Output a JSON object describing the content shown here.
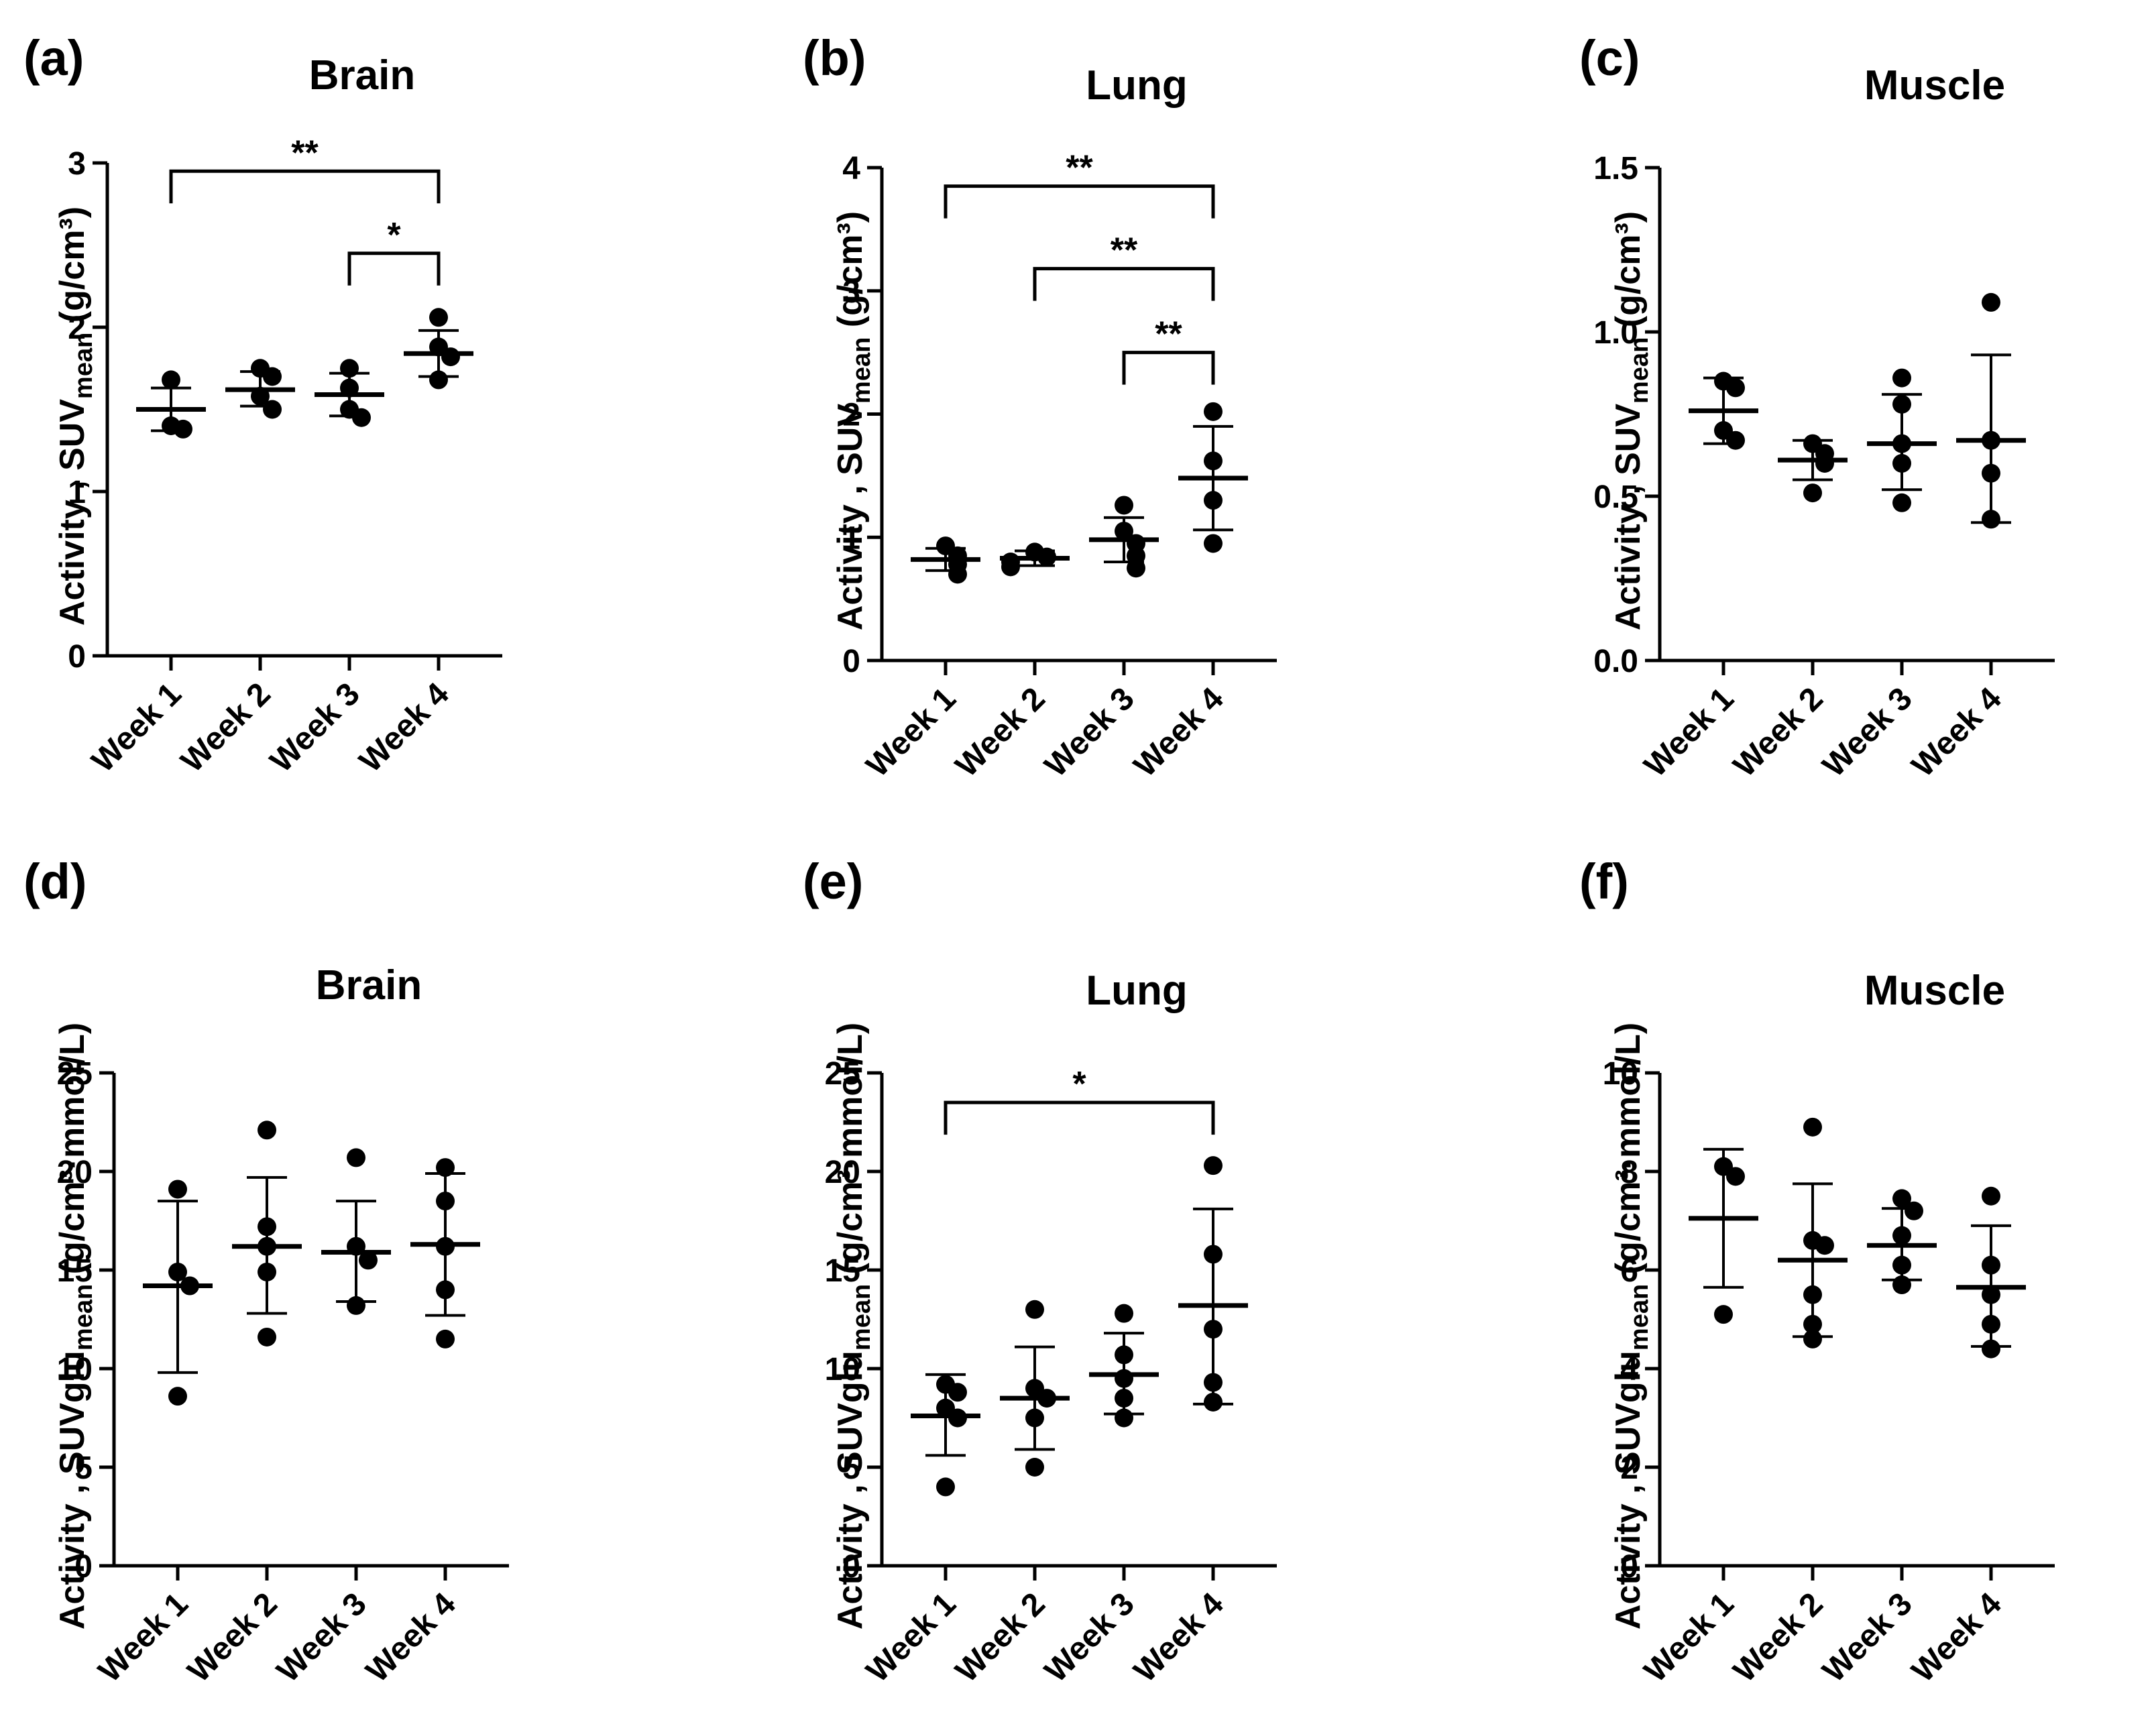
{
  "chart_data": [
    {
      "panel": "(a)",
      "title": "Brain",
      "type": "scatter",
      "ylabel_main": "Activity , SUV",
      "ylabel_sub": "mean",
      "ylabel_unit": " (g/cm³)",
      "ylim": [
        0,
        3
      ],
      "yticks": [
        "0",
        "1",
        "2",
        "3"
      ],
      "categories": [
        "Week 1",
        "Week 2",
        "Week 3",
        "Week 4"
      ],
      "groups": [
        {
          "points": [
            1.68,
            1.4,
            1.38
          ],
          "mean": 1.5,
          "sd_low": 1.37,
          "sd_high": 1.63
        },
        {
          "points": [
            1.75,
            1.7,
            1.58,
            1.5
          ],
          "mean": 1.62,
          "sd_low": 1.52,
          "sd_high": 1.73
        },
        {
          "points": [
            1.75,
            1.63,
            1.5,
            1.45
          ],
          "mean": 1.59,
          "sd_low": 1.46,
          "sd_high": 1.72
        },
        {
          "points": [
            2.06,
            1.88,
            1.82,
            1.68
          ],
          "mean": 1.84,
          "sd_low": 1.7,
          "sd_high": 1.98
        }
      ],
      "significance": [
        {
          "from": 0,
          "to": 3,
          "label": "**",
          "y": 2.95
        },
        {
          "from": 2,
          "to": 3,
          "label": "*",
          "y": 2.45
        }
      ]
    },
    {
      "panel": "(b)",
      "title": "Lung",
      "type": "scatter",
      "ylabel_main": "Activity , SUV",
      "ylabel_sub": "mean",
      "ylabel_unit": " (g/cm³)",
      "ylim": [
        0,
        4
      ],
      "yticks": [
        "0",
        "1",
        "2",
        "3",
        "4"
      ],
      "categories": [
        "Week 1",
        "Week 2",
        "Week 3",
        "Week 4"
      ],
      "groups": [
        {
          "points": [
            0.93,
            0.85,
            0.78,
            0.7
          ],
          "mean": 0.82,
          "sd_low": 0.73,
          "sd_high": 0.91
        },
        {
          "points": [
            0.88,
            0.84,
            0.8,
            0.76
          ],
          "mean": 0.83,
          "sd_low": 0.77,
          "sd_high": 0.89
        },
        {
          "points": [
            1.26,
            1.05,
            0.95,
            0.85,
            0.75
          ],
          "mean": 0.98,
          "sd_low": 0.8,
          "sd_high": 1.16
        },
        {
          "points": [
            2.02,
            1.62,
            1.3,
            0.95
          ],
          "mean": 1.48,
          "sd_low": 1.06,
          "sd_high": 1.9
        }
      ],
      "significance": [
        {
          "from": 0,
          "to": 3,
          "label": "**",
          "y": 3.85
        },
        {
          "from": 1,
          "to": 3,
          "label": "**",
          "y": 3.18
        },
        {
          "from": 2,
          "to": 3,
          "label": "**",
          "y": 2.5
        }
      ]
    },
    {
      "panel": "(c)",
      "title": "Muscle",
      "type": "scatter",
      "ylabel_main": "Activity , SUV",
      "ylabel_sub": "mean",
      "ylabel_unit": " (g/cm³)",
      "ylim": [
        0,
        1.5
      ],
      "yticks": [
        "0.0",
        "0.5",
        "1.0",
        "1.5"
      ],
      "categories": [
        "Week 1",
        "Week 2",
        "Week 3",
        "Week 4"
      ],
      "groups": [
        {
          "points": [
            0.85,
            0.83,
            0.7,
            0.67
          ],
          "mean": 0.76,
          "sd_low": 0.66,
          "sd_high": 0.86
        },
        {
          "points": [
            0.66,
            0.63,
            0.6,
            0.51
          ],
          "mean": 0.61,
          "sd_low": 0.55,
          "sd_high": 0.67
        },
        {
          "points": [
            0.86,
            0.78,
            0.66,
            0.6,
            0.48
          ],
          "mean": 0.66,
          "sd_low": 0.52,
          "sd_high": 0.81
        },
        {
          "points": [
            1.09,
            0.67,
            0.57,
            0.43
          ],
          "mean": 0.67,
          "sd_low": 0.42,
          "sd_high": 0.93
        }
      ],
      "significance": []
    },
    {
      "panel": "(d)",
      "title": "Brain",
      "type": "scatter",
      "ylabel_main": "Activity , SUVglu",
      "ylabel_sub": "mean",
      "ylabel_unit": " (g/cm³·mmol/L)",
      "ylim": [
        0,
        25
      ],
      "yticks": [
        "0",
        "5",
        "10",
        "15",
        "20",
        "25"
      ],
      "categories": [
        "Week 1",
        "Week 2",
        "Week 3",
        "Week 4"
      ],
      "groups": [
        {
          "points": [
            19.1,
            14.9,
            14.2,
            8.6
          ],
          "mean": 14.2,
          "sd_low": 9.8,
          "sd_high": 18.5
        },
        {
          "points": [
            22.1,
            17.2,
            16.2,
            14.9,
            11.6
          ],
          "mean": 16.2,
          "sd_low": 12.8,
          "sd_high": 19.7
        },
        {
          "points": [
            20.7,
            16.2,
            15.5,
            13.2
          ],
          "mean": 15.9,
          "sd_low": 13.4,
          "sd_high": 18.5
        },
        {
          "points": [
            20.2,
            18.5,
            16.2,
            14.0,
            11.5
          ],
          "mean": 16.3,
          "sd_low": 12.7,
          "sd_high": 19.9
        }
      ],
      "significance": []
    },
    {
      "panel": "(e)",
      "title": "Lung",
      "type": "scatter",
      "ylabel_main": "Activity , SUVglu",
      "ylabel_sub": "mean",
      "ylabel_unit": " (g/cm³·mmol/L)",
      "ylim": [
        0,
        25
      ],
      "yticks": [
        "0",
        "5",
        "10",
        "15",
        "20",
        "25"
      ],
      "categories": [
        "Week 1",
        "Week 2",
        "Week 3",
        "Week 4"
      ],
      "groups": [
        {
          "points": [
            9.2,
            8.8,
            8.0,
            7.5,
            4.0
          ],
          "mean": 7.6,
          "sd_low": 5.6,
          "sd_high": 9.7
        },
        {
          "points": [
            13.0,
            9.0,
            8.5,
            7.5,
            5.0
          ],
          "mean": 8.5,
          "sd_low": 5.9,
          "sd_high": 11.1
        },
        {
          "points": [
            12.8,
            10.7,
            9.5,
            8.5,
            7.5
          ],
          "mean": 9.7,
          "sd_low": 7.7,
          "sd_high": 11.8
        },
        {
          "points": [
            20.3,
            15.8,
            12.0,
            9.3,
            8.3
          ],
          "mean": 13.2,
          "sd_low": 8.2,
          "sd_high": 18.1
        }
      ],
      "significance": [
        {
          "from": 0,
          "to": 3,
          "label": "*",
          "y": 23.5
        }
      ]
    },
    {
      "panel": "(f)",
      "title": "Muscle",
      "type": "scatter",
      "ylabel_main": "Activity , SUVglu",
      "ylabel_sub": "mean",
      "ylabel_unit": " (g/cm³·mmol/L)",
      "ylim": [
        0,
        10
      ],
      "yticks": [
        "0",
        "2",
        "4",
        "6",
        "8",
        "10"
      ],
      "categories": [
        "Week 1",
        "Week 2",
        "Week 3",
        "Week 4"
      ],
      "groups": [
        {
          "points": [
            8.1,
            7.9,
            5.1
          ],
          "mean": 7.05,
          "sd_low": 5.65,
          "sd_high": 8.45
        },
        {
          "points": [
            8.9,
            6.6,
            6.5,
            5.5,
            4.9,
            4.6
          ],
          "mean": 6.2,
          "sd_low": 4.65,
          "sd_high": 7.75
        },
        {
          "points": [
            7.45,
            7.2,
            6.7,
            6.1,
            5.7
          ],
          "mean": 6.5,
          "sd_low": 5.8,
          "sd_high": 7.25
        },
        {
          "points": [
            7.5,
            6.1,
            5.5,
            4.9,
            4.4
          ],
          "mean": 5.65,
          "sd_low": 4.45,
          "sd_high": 6.9
        }
      ],
      "significance": []
    }
  ]
}
